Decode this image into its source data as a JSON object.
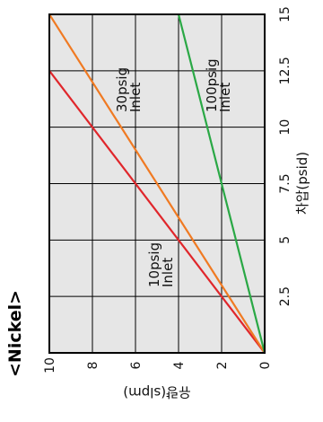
{
  "chart_data": {
    "type": "line",
    "title": "<Nickel>",
    "xlabel": "유량(slpm)",
    "ylabel": "차압(psid)",
    "xlim": [
      0,
      15
    ],
    "ylim": [
      0,
      10
    ],
    "x_ticks": [
      "2.5",
      "5",
      "7.5",
      "10",
      "12.5",
      "15"
    ],
    "y_ticks": [
      "10",
      "8",
      "6",
      "4",
      "2",
      "0"
    ],
    "grid": true,
    "series": [
      {
        "name": "10psig Inlet",
        "color": "#e0262b",
        "x": [
          0,
          15
        ],
        "y": [
          0,
          12
        ]
      },
      {
        "name": "30psig Inlet",
        "color": "#f07a22",
        "x": [
          0,
          15
        ],
        "y": [
          0,
          10
        ]
      },
      {
        "name": "100psig Inlet",
        "color": "#2aa845",
        "x": [
          0,
          15
        ],
        "y": [
          0,
          4
        ]
      }
    ],
    "annotations": [
      {
        "line1": "10psig",
        "line2": "Inlet"
      },
      {
        "line1": "30psig",
        "line2": "Inlet"
      },
      {
        "line1": "100psig",
        "line2": "Inlet"
      }
    ]
  }
}
